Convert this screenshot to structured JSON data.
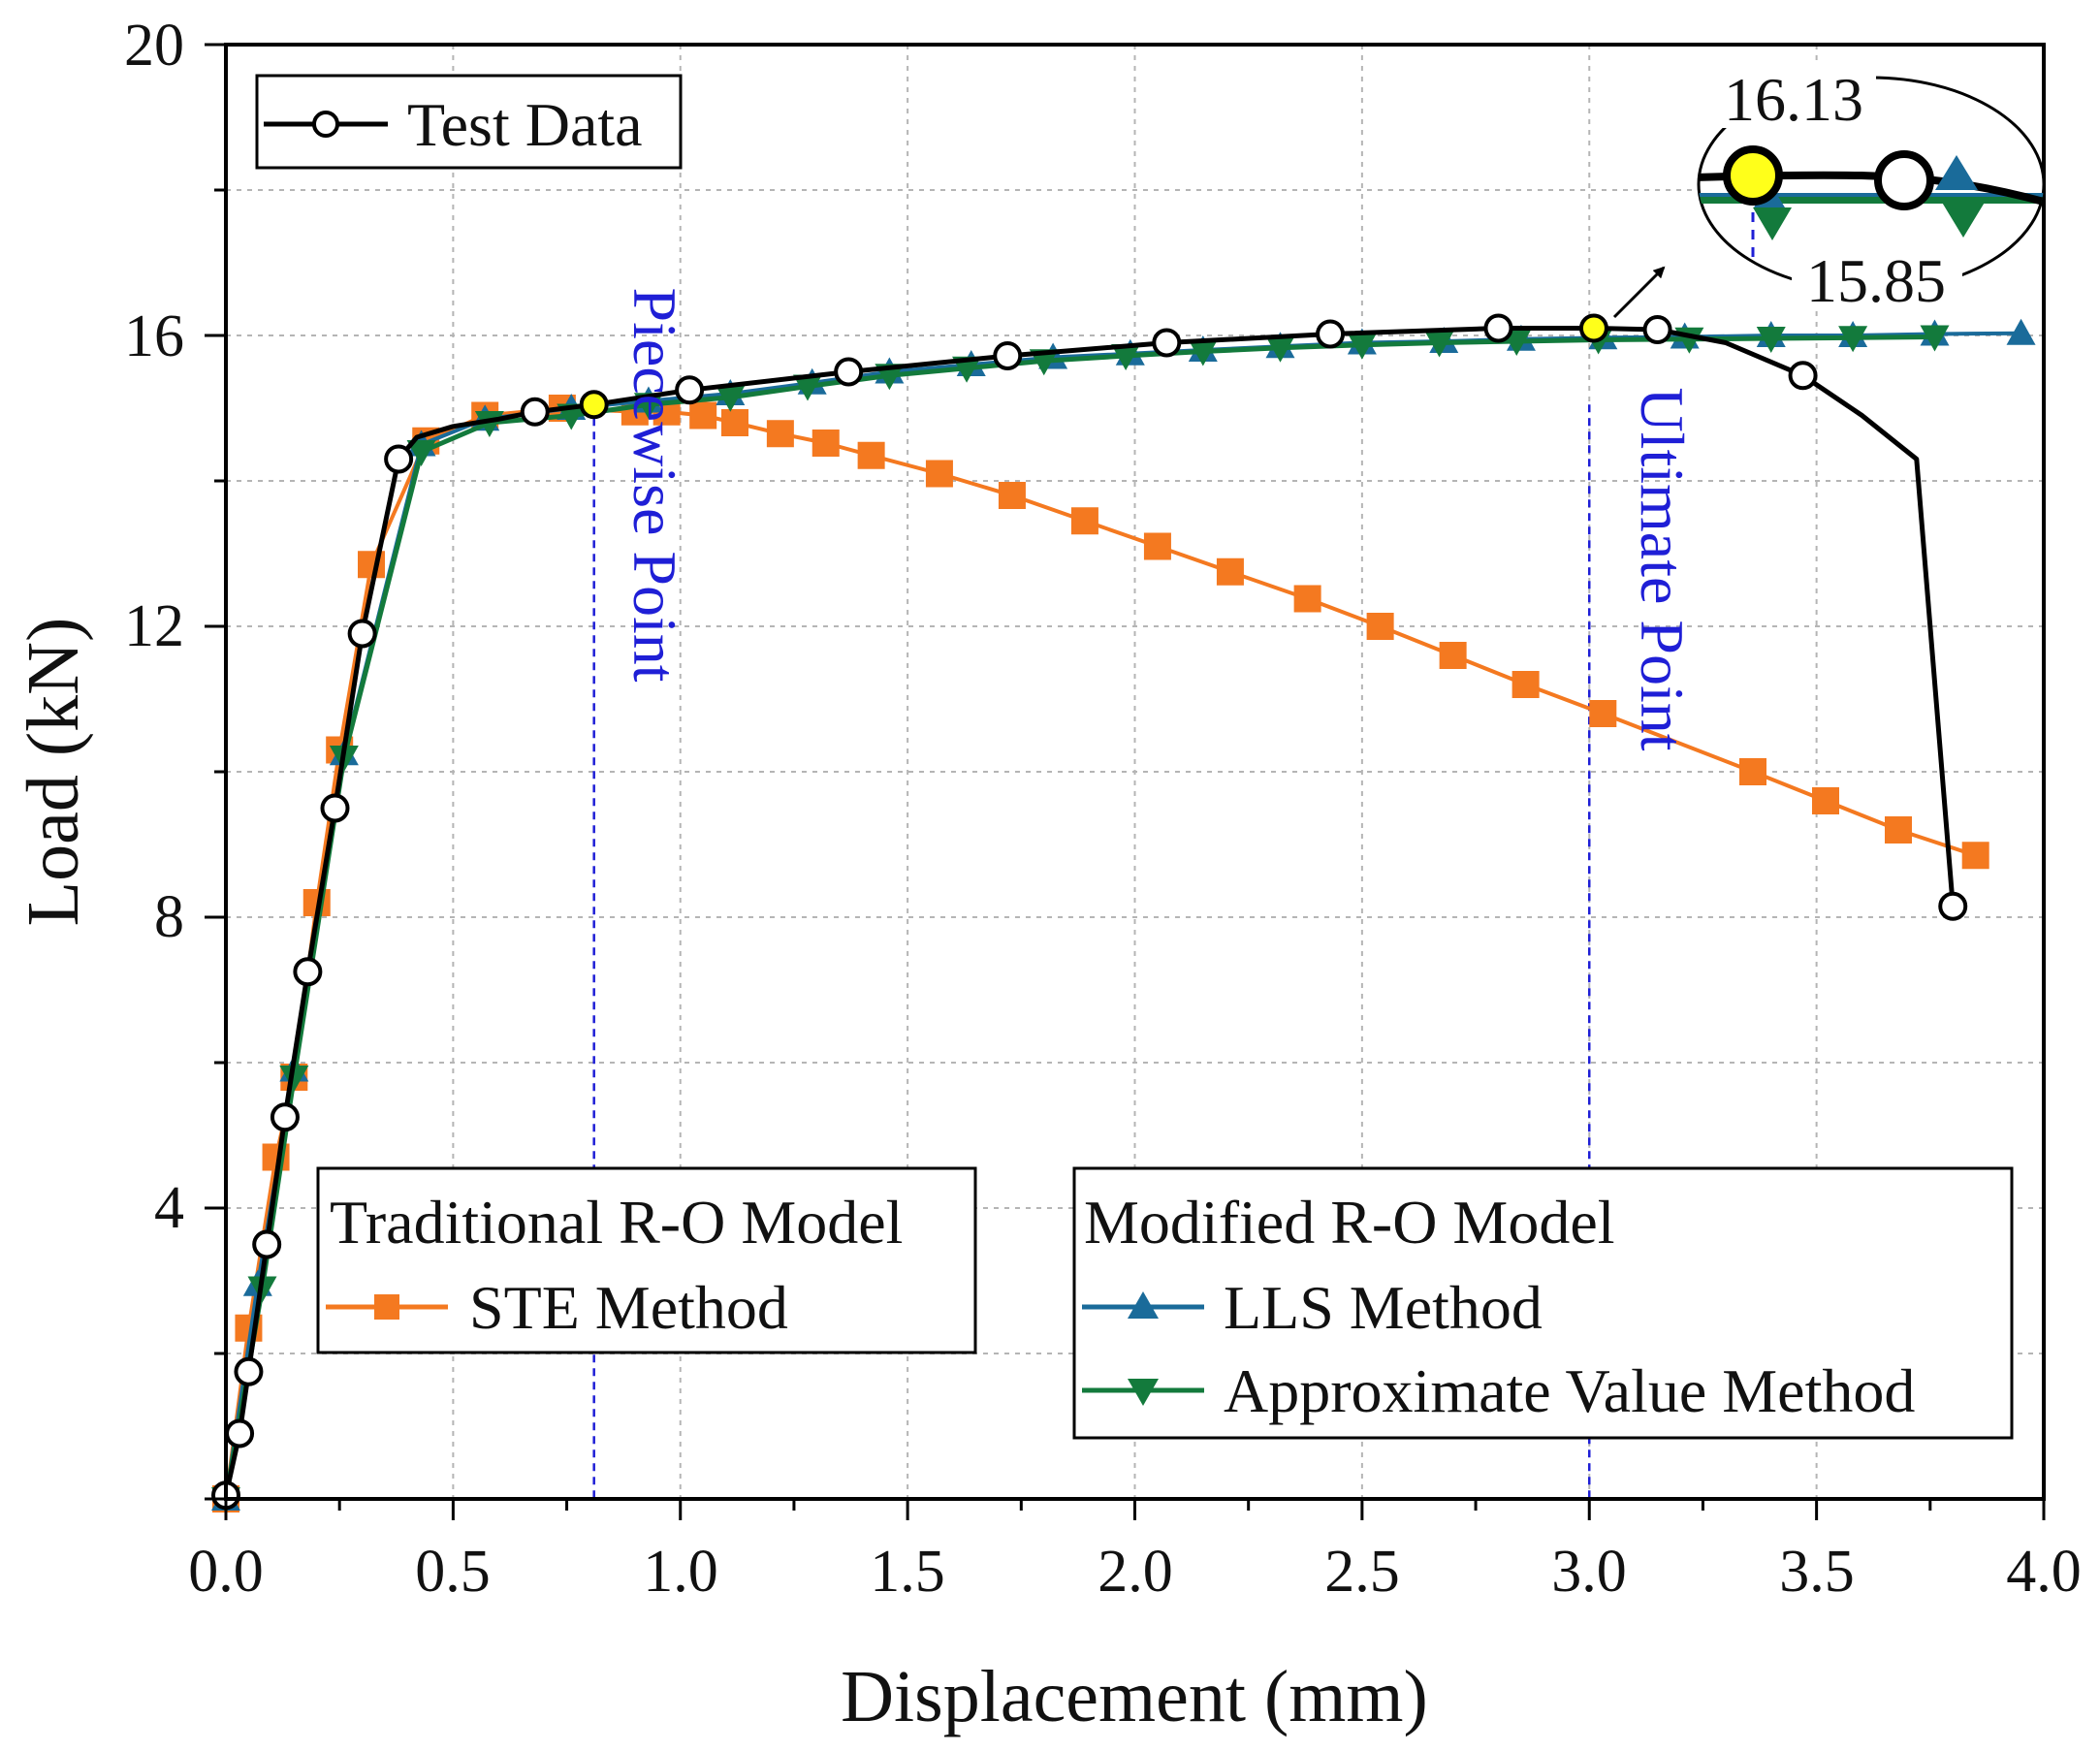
{
  "chart_data": {
    "type": "line",
    "xlabel": "Displacement (mm)",
    "ylabel": "Load (kN)",
    "xlim": [
      0,
      4.0
    ],
    "ylim": [
      0,
      20
    ],
    "x_ticks": [
      "0.0",
      "0.5",
      "1.0",
      "1.5",
      "2.0",
      "2.5",
      "3.0",
      "3.5",
      "4.0"
    ],
    "y_ticks": [
      "4",
      "8",
      "12",
      "16",
      "20"
    ],
    "grid": true,
    "colors": {
      "test": "#000000",
      "ste": "#f47920",
      "lls": "#1a6b9a",
      "approx": "#137a3c",
      "vline": "#1f1fd6",
      "highlight": "#ffff1a"
    },
    "legends": {
      "test": {
        "entries": [
          "Test Data"
        ]
      },
      "traditional": {
        "title": "Traditional R-O Model",
        "entries": [
          "STE Method"
        ]
      },
      "modified": {
        "title": "Modified R-O Model",
        "entries": [
          "LLS Method",
          "Approximate Value Method"
        ]
      }
    },
    "annotations": {
      "piecewise_label": "Piecewise Point",
      "ultimate_label": "Ultimate Point",
      "piecewise_x": 0.81,
      "ultimate_x": 3.0,
      "inset_upper": "16.13",
      "inset_lower": "15.85"
    },
    "series": [
      {
        "name": "Test Data",
        "marker": "circle",
        "x": [
          0,
          0.03,
          0.05,
          0.09,
          0.13,
          0.18,
          0.24,
          0.3,
          0.38,
          0.42,
          0.5,
          0.6,
          0.68,
          0.81,
          1.02,
          1.37,
          1.72,
          2.07,
          2.43,
          2.8,
          3.01,
          3.15,
          3.3,
          3.47,
          3.6,
          3.68,
          3.72,
          3.8
        ],
        "y": [
          0.05,
          0.9,
          1.75,
          3.5,
          5.25,
          7.25,
          9.5,
          11.9,
          14.3,
          14.6,
          14.75,
          14.85,
          14.95,
          15.05,
          15.25,
          15.5,
          15.72,
          15.9,
          16.02,
          16.1,
          16.1,
          16.08,
          15.9,
          15.45,
          14.9,
          14.5,
          14.3,
          8.15
        ]
      },
      {
        "name": "STE Method",
        "marker": "square",
        "x": [
          0,
          0.05,
          0.11,
          0.15,
          0.2,
          0.25,
          0.32,
          0.44,
          0.57,
          0.74,
          0.9,
          0.97,
          1.05,
          1.12,
          1.22,
          1.32,
          1.42,
          1.57,
          1.73,
          1.89,
          2.05,
          2.21,
          2.38,
          2.54,
          2.7,
          2.86,
          3.03,
          3.36,
          3.52,
          3.68,
          3.85
        ],
        "y": [
          0,
          2.35,
          4.7,
          5.8,
          8.2,
          10.3,
          12.85,
          14.55,
          14.9,
          15.0,
          14.95,
          14.95,
          14.9,
          14.8,
          14.65,
          14.52,
          14.35,
          14.1,
          13.8,
          13.45,
          13.1,
          12.75,
          12.38,
          12.0,
          11.6,
          11.2,
          10.8,
          10.0,
          9.6,
          9.2,
          8.85
        ]
      },
      {
        "name": "LLS Method",
        "marker": "triangle-up",
        "x": [
          0,
          0.07,
          0.15,
          0.26,
          0.43,
          0.57,
          0.76,
          0.93,
          1.11,
          1.29,
          1.46,
          1.64,
          1.82,
          1.99,
          2.15,
          2.32,
          2.5,
          2.68,
          2.85,
          3.03,
          3.21,
          3.4,
          3.58,
          3.76,
          3.95
        ],
        "y": [
          0,
          2.95,
          5.9,
          10.25,
          14.5,
          14.85,
          15.0,
          15.1,
          15.2,
          15.35,
          15.5,
          15.6,
          15.7,
          15.75,
          15.8,
          15.85,
          15.9,
          15.92,
          15.95,
          15.97,
          15.98,
          16.0,
          16.0,
          16.02,
          16.03
        ]
      },
      {
        "name": "Approximate Value Method",
        "marker": "triangle-down",
        "x": [
          0,
          0.08,
          0.15,
          0.26,
          0.43,
          0.58,
          0.76,
          0.93,
          1.11,
          1.28,
          1.46,
          1.63,
          1.8,
          1.98,
          2.15,
          2.32,
          2.5,
          2.67,
          2.84,
          3.02,
          3.22,
          3.4,
          3.58,
          3.76
        ],
        "y": [
          0,
          2.9,
          5.8,
          10.2,
          14.4,
          14.8,
          14.9,
          15.05,
          15.15,
          15.3,
          15.45,
          15.55,
          15.65,
          15.72,
          15.78,
          15.83,
          15.87,
          15.9,
          15.92,
          15.94,
          15.95,
          15.96,
          15.97,
          15.98
        ]
      }
    ]
  }
}
